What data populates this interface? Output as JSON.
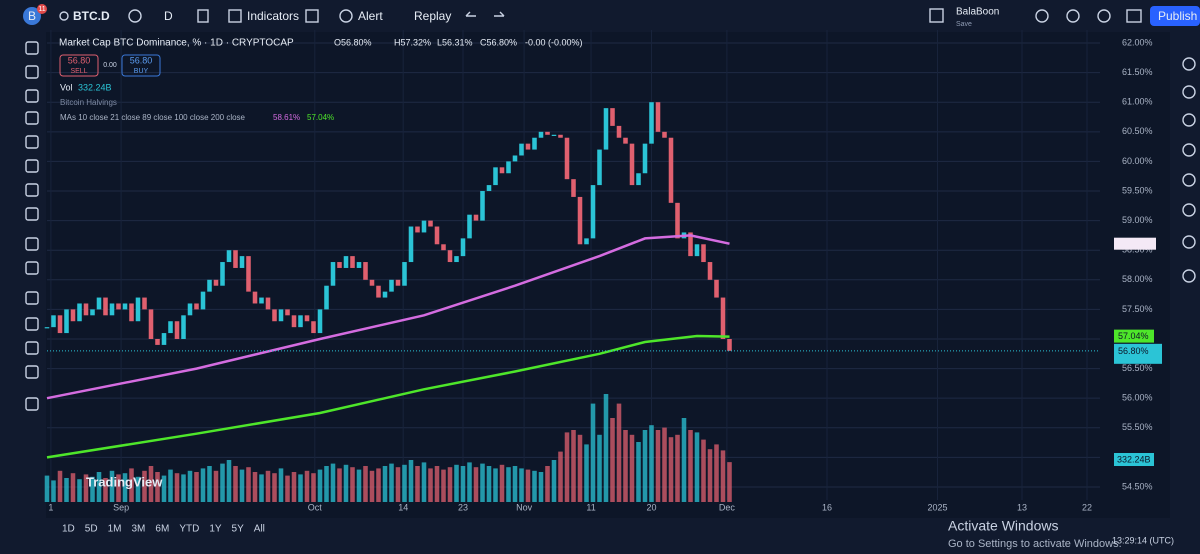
{
  "toolbar": {
    "avatar": "B",
    "badge": "11",
    "symbol": "BTC.D",
    "interval": "D",
    "indicators": "Indicators",
    "alert": "Alert",
    "replay": "Replay",
    "user": "BalaBoon",
    "save": "Save",
    "publish": "Publish"
  },
  "legend": {
    "title": "Market Cap BTC Dominance, % · 1D · CRYPTOCAP",
    "open": "O56.80%",
    "high": "H57.32%",
    "low": "L56.31%",
    "close": "C56.80%",
    "change": "-0.00 (-0.00%)",
    "sell_price": "56.80",
    "sell": "SELL",
    "spread": "0.00",
    "buy_price": "56.80",
    "buy": "BUY",
    "vol": "Vol",
    "vol_value": "332.24B",
    "halvings": "Bitcoin Halvings",
    "mas": "MAs 10 close 21 close 89 close 100 close 200 close",
    "ma100_value": "58.61%",
    "ma200_value": "57.04%"
  },
  "chart_data": {
    "type": "candlestick",
    "up_color": "#2bc4d6",
    "down_color": "#e0606f",
    "ylim": [
      54.28,
      62.22
    ],
    "yticks": [
      {
        "value": 62,
        "label": "62.00%"
      },
      {
        "value": 61.5,
        "label": "61.50%"
      },
      {
        "value": 61,
        "label": "61.00%"
      },
      {
        "value": 60.5,
        "label": "60.50%"
      },
      {
        "value": 60,
        "label": "60.00%"
      },
      {
        "value": 59.5,
        "label": "59.50%"
      },
      {
        "value": 59,
        "label": "59.00%"
      },
      {
        "value": 58.5,
        "label": "58.50%"
      },
      {
        "value": 58,
        "label": "58.00%"
      },
      {
        "value": 57.5,
        "label": "57.50%"
      },
      {
        "value": 57,
        "label": "57.00%"
      },
      {
        "value": 56.5,
        "label": "56.50%"
      },
      {
        "value": 56,
        "label": "56.00%"
      },
      {
        "value": 55.5,
        "label": "55.50%"
      },
      {
        "value": 55,
        "label": "55.00%"
      },
      {
        "value": 54.5,
        "label": "54.50%"
      }
    ],
    "xlim": [
      0,
      162
    ],
    "xticks": [
      {
        "value": 0.6,
        "label": "1"
      },
      {
        "value": 11.4,
        "label": "Sep"
      },
      {
        "value": 41.2,
        "label": "Oct"
      },
      {
        "value": 54.8,
        "label": "14"
      },
      {
        "value": 64,
        "label": "23"
      },
      {
        "value": 73.4,
        "label": "Nov"
      },
      {
        "value": 83.7,
        "label": "11"
      },
      {
        "value": 93,
        "label": "20"
      },
      {
        "value": 104.6,
        "label": "Dec"
      },
      {
        "value": 120,
        "label": "16"
      },
      {
        "value": 137,
        "label": "2025"
      },
      {
        "value": 150,
        "label": "13"
      },
      {
        "value": 160,
        "label": "22"
      }
    ],
    "close": [
      57.2,
      57.4,
      57.1,
      57.5,
      57.3,
      57.6,
      57.4,
      57.5,
      57.7,
      57.4,
      57.6,
      57.5,
      57.6,
      57.3,
      57.7,
      57.5,
      57.0,
      56.9,
      57.1,
      57.3,
      57.0,
      57.4,
      57.6,
      57.5,
      57.8,
      58.0,
      57.9,
      58.3,
      58.5,
      58.2,
      58.4,
      57.8,
      57.6,
      57.7,
      57.5,
      57.3,
      57.5,
      57.4,
      57.2,
      57.4,
      57.3,
      57.1,
      57.5,
      57.9,
      58.3,
      58.2,
      58.4,
      58.2,
      58.3,
      58.0,
      57.9,
      57.7,
      57.8,
      58.0,
      57.9,
      58.3,
      58.9,
      58.8,
      59.0,
      58.9,
      58.6,
      58.5,
      58.3,
      58.4,
      58.7,
      59.1,
      59.0,
      59.5,
      59.6,
      59.9,
      59.8,
      60.0,
      60.1,
      60.3,
      60.2,
      60.4,
      60.5,
      60.45,
      60.45,
      60.4,
      59.7,
      59.4,
      58.6,
      58.7,
      59.6,
      60.2,
      60.9,
      60.6,
      60.4,
      60.3,
      59.6,
      59.8,
      60.3,
      61.0,
      60.5,
      60.4,
      59.3,
      58.7,
      58.8,
      58.4,
      58.6,
      58.3,
      58.0,
      57.7,
      57.0,
      56.8
    ],
    "volume": [
      220,
      180,
      260,
      200,
      240,
      190,
      230,
      210,
      250,
      200,
      260,
      230,
      240,
      280,
      210,
      260,
      300,
      250,
      220,
      270,
      240,
      230,
      260,
      250,
      280,
      300,
      260,
      320,
      350,
      300,
      270,
      290,
      250,
      230,
      260,
      240,
      280,
      220,
      250,
      230,
      260,
      240,
      270,
      300,
      320,
      280,
      310,
      290,
      270,
      300,
      260,
      280,
      300,
      320,
      290,
      310,
      350,
      300,
      330,
      280,
      300,
      270,
      290,
      310,
      300,
      330,
      290,
      320,
      300,
      280,
      310,
      290,
      300,
      280,
      270,
      260,
      250,
      300,
      350,
      420,
      580,
      600,
      560,
      480,
      820,
      560,
      900,
      700,
      820,
      600,
      560,
      500,
      600,
      640,
      600,
      620,
      540,
      560,
      700,
      600,
      580,
      520,
      440,
      480,
      430,
      332.24
    ],
    "ma100": {
      "color": "#d46ce0",
      "x": [
        0,
        23,
        42,
        58,
        72,
        85,
        92,
        99,
        105
      ],
      "values": [
        56.0,
        56.5,
        57.0,
        57.4,
        57.9,
        58.4,
        58.7,
        58.75,
        58.61
      ]
    },
    "ma200": {
      "color": "#4ee62a",
      "x": [
        0,
        23,
        42,
        58,
        72,
        85,
        92,
        100,
        105
      ],
      "values": [
        55.0,
        55.4,
        55.75,
        56.15,
        56.45,
        56.75,
        56.95,
        57.05,
        57.04
      ]
    },
    "price_label": "56.80%",
    "volume_label": "332.24B"
  },
  "logo": "TradingView",
  "ranges": [
    "1D",
    "5D",
    "1M",
    "3M",
    "6M",
    "YTD",
    "1Y",
    "5Y",
    "All"
  ],
  "overlay": {
    "activate": "Activate Windows",
    "activate_hint": "Go to Settings to activate Windows.",
    "clock": "13:29:14 (UTC)"
  }
}
